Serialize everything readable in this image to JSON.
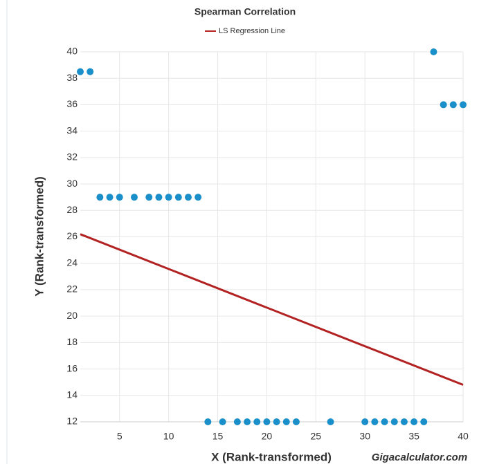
{
  "chart_data": {
    "type": "scatter",
    "title": "Spearman Correlation",
    "x_label": "X (Rank-transformed)",
    "y_label": "Y (Rank-transformed)",
    "watermark": "Gigacalculator.com",
    "color": "#1a8fc9",
    "x": [
      1,
      2,
      3,
      4,
      5,
      6.5,
      8,
      9,
      10,
      11,
      12,
      13,
      14,
      15.5,
      17,
      18,
      19,
      20,
      21,
      22,
      23,
      26.5,
      30,
      31,
      32,
      33,
      34,
      35,
      36,
      37,
      38,
      39,
      40
    ],
    "values": [
      38.5,
      38.5,
      29,
      29,
      29,
      29,
      29,
      29,
      29,
      29,
      29,
      29,
      12,
      12,
      12,
      12,
      12,
      12,
      12,
      12,
      12,
      12,
      12,
      12,
      12,
      12,
      12,
      12,
      12,
      40,
      36,
      36,
      36
    ],
    "lines": [
      {
        "name": "LS Regression Line",
        "color": "#b22222",
        "x": [
          1,
          40
        ],
        "values": [
          26.2,
          14.8
        ]
      }
    ],
    "xlim": [
      1,
      40
    ],
    "xticks": [
      5,
      10,
      15,
      20,
      25,
      30,
      35,
      40
    ],
    "ylim": [
      12,
      40
    ],
    "yticks": [
      12,
      14,
      16,
      18,
      20,
      22,
      24,
      26,
      28,
      30,
      32,
      34,
      36,
      38,
      40
    ],
    "grid": true
  }
}
